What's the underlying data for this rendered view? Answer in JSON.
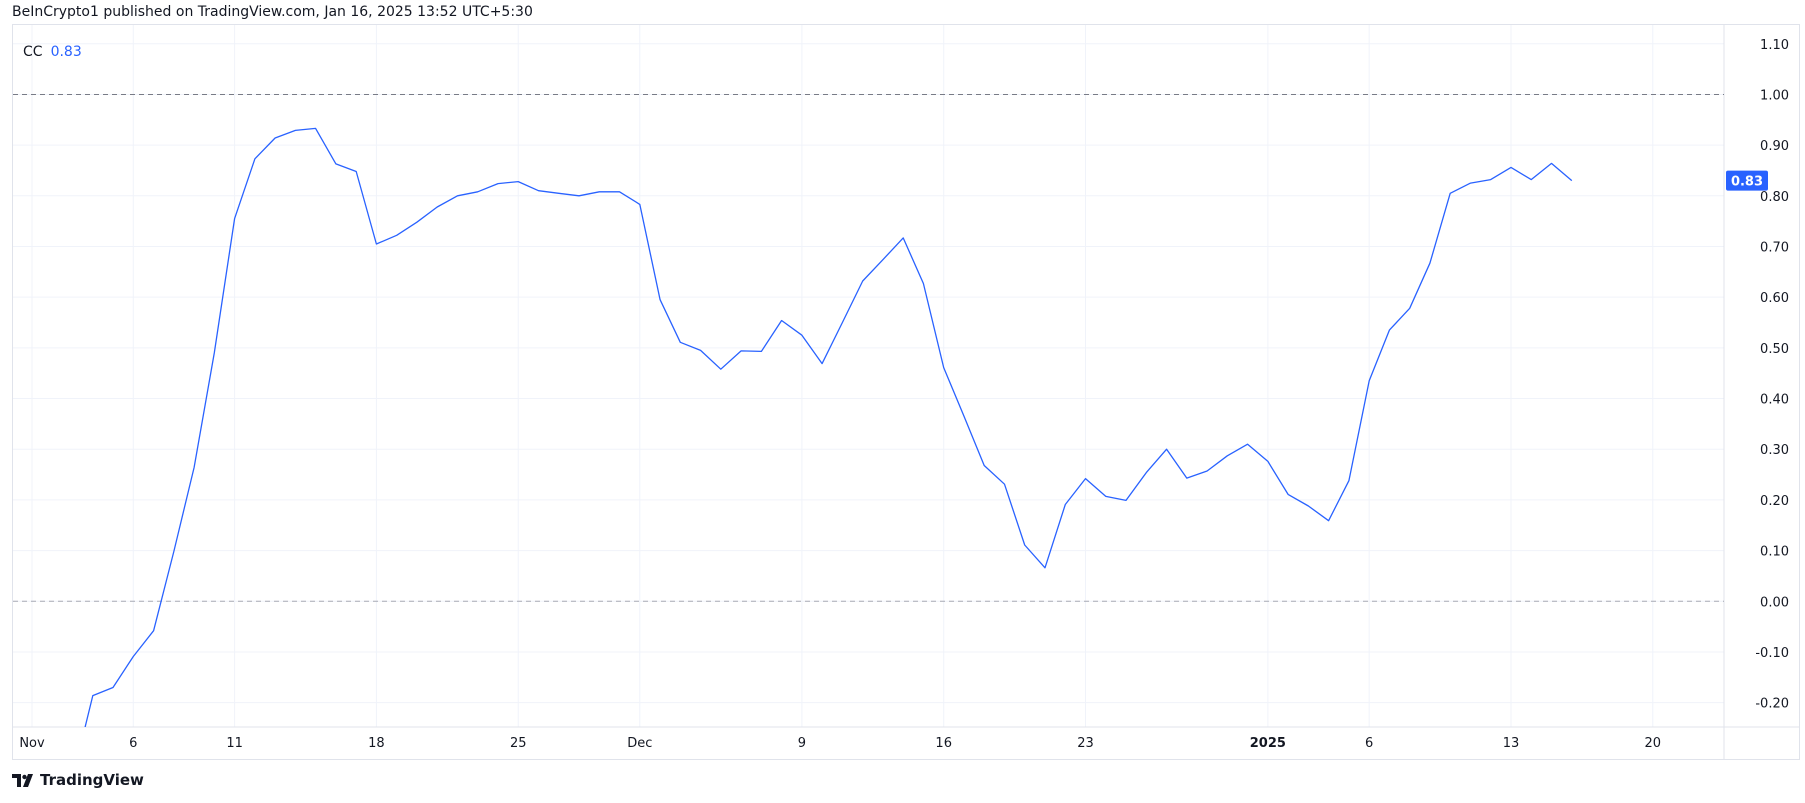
{
  "header": {
    "attribution": "BeInCrypto1 published on TradingView.com, Jan 16, 2025 13:52 UTC+5:30"
  },
  "legend": {
    "name": "CC",
    "value": "0.83"
  },
  "footer": {
    "brand": "TradingView"
  },
  "colors": {
    "line": "#2962ff",
    "grid": "#f0f3fa",
    "dashed": "#787b86",
    "label_bg": "#2962ff"
  },
  "chart_data": {
    "type": "line",
    "title": "",
    "xlabel": "",
    "ylabel": "",
    "ylim": [
      -0.248,
      1.137
    ],
    "grid": true,
    "y_ticks": [
      "1.10",
      "1.00",
      "0.90",
      "0.80",
      "0.70",
      "0.60",
      "0.50",
      "0.40",
      "0.30",
      "0.20",
      "0.10",
      "0.00",
      "-0.10",
      "-0.20"
    ],
    "x_ticks": [
      {
        "date": "2024-11-01",
        "label": "Nov",
        "bold": false
      },
      {
        "date": "2024-11-06",
        "label": "6",
        "bold": false
      },
      {
        "date": "2024-11-11",
        "label": "11",
        "bold": false
      },
      {
        "date": "2024-11-18",
        "label": "18",
        "bold": false
      },
      {
        "date": "2024-11-25",
        "label": "25",
        "bold": false
      },
      {
        "date": "2024-12-01",
        "label": "Dec",
        "bold": false
      },
      {
        "date": "2024-12-09",
        "label": "9",
        "bold": false
      },
      {
        "date": "2024-12-16",
        "label": "16",
        "bold": false
      },
      {
        "date": "2024-12-23",
        "label": "23",
        "bold": false
      },
      {
        "date": "2025-01-01",
        "label": "2025",
        "bold": true
      },
      {
        "date": "2025-01-06",
        "label": "6",
        "bold": false
      },
      {
        "date": "2025-01-13",
        "label": "13",
        "bold": false
      },
      {
        "date": "2025-01-20",
        "label": "20",
        "bold": false
      }
    ],
    "reference_lines": [
      1.0,
      0.0
    ],
    "last_value_label": "0.83",
    "start_date": "2024-11-03",
    "series": [
      {
        "name": "CC",
        "values": [
          -0.35,
          -0.186,
          -0.17,
          -0.109,
          -0.058,
          0.098,
          0.264,
          0.49,
          0.755,
          0.873,
          0.914,
          0.929,
          0.933,
          0.863,
          0.848,
          0.705,
          0.722,
          0.748,
          0.778,
          0.8,
          0.808,
          0.824,
          0.828,
          0.81,
          0.805,
          0.8,
          0.808,
          0.808,
          0.783,
          0.595,
          0.511,
          0.495,
          0.458,
          0.494,
          0.493,
          0.554,
          0.525,
          0.469,
          0.55,
          0.632,
          0.674,
          0.717,
          0.627,
          0.461,
          0.365,
          0.268,
          0.231,
          0.111,
          0.066,
          0.191,
          0.242,
          0.207,
          0.199,
          0.254,
          0.3,
          0.243,
          0.257,
          0.287,
          0.31,
          0.276,
          0.211,
          0.188,
          0.159,
          0.238,
          0.435,
          0.535,
          0.578,
          0.667,
          0.805,
          0.825,
          0.832,
          0.856,
          0.832,
          0.864,
          0.83
        ]
      }
    ]
  }
}
